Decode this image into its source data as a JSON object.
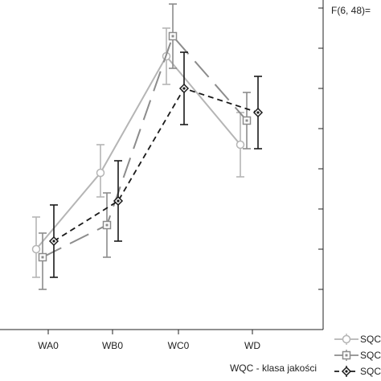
{
  "chart_data": {
    "type": "line",
    "categories": [
      "WA0",
      "WB0",
      "WC0",
      "WD"
    ],
    "xlabel": "WQC - klasa jakości",
    "annotation": "F(6, 48)=",
    "ylim": [
      0,
      8
    ],
    "grid": false,
    "legend_position": "bottom-right",
    "series": [
      {
        "name": "SQC",
        "color": "#b5b5b5",
        "dash": "solid",
        "marker": "circle",
        "values": [
          2.0,
          3.9,
          6.8,
          4.6
        ],
        "err_low": [
          1.3,
          3.3,
          6.1,
          3.8
        ],
        "err_high": [
          2.8,
          4.6,
          7.5,
          5.4
        ]
      },
      {
        "name": "SQC",
        "color": "#8c8c8c",
        "dash": "long-dash",
        "marker": "square",
        "values": [
          1.8,
          2.6,
          7.3,
          5.2
        ],
        "err_low": [
          1.0,
          1.8,
          6.5,
          4.5
        ],
        "err_high": [
          2.4,
          3.4,
          8.1,
          5.9
        ]
      },
      {
        "name": "SQC",
        "color": "#1a1a1a",
        "dash": "short-dash",
        "marker": "diamond",
        "values": [
          2.2,
          3.2,
          6.0,
          5.4
        ],
        "err_low": [
          1.3,
          2.2,
          5.1,
          4.5
        ],
        "err_high": [
          3.1,
          4.2,
          6.9,
          6.3
        ]
      }
    ]
  }
}
